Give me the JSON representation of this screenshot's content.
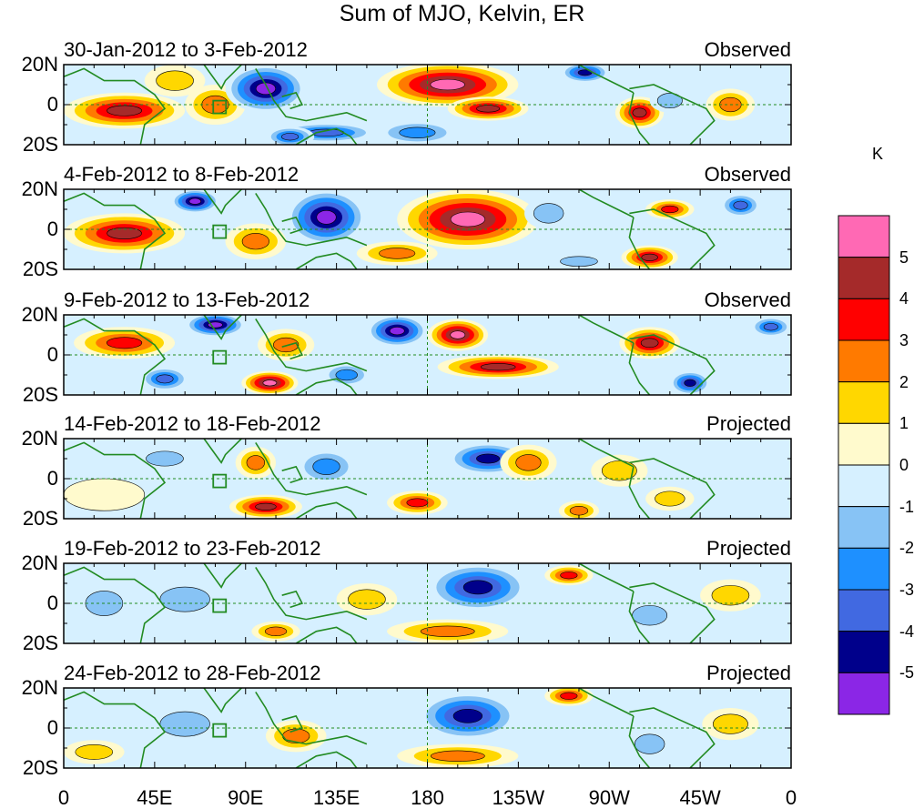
{
  "chart_data": {
    "type": "heatmap",
    "title": "Sum of MJO, Kelvin, ER",
    "colorbar": {
      "unit": "K",
      "tick_labels": [
        "5",
        "4",
        "3",
        "2",
        "1",
        "0",
        "-1",
        "-2",
        "-3",
        "-4",
        "-5"
      ],
      "levels": [
        -5,
        -4,
        -3,
        -2,
        -1,
        0,
        1,
        2,
        3,
        4,
        5
      ],
      "colors_low_to_high": [
        "#8b26e6",
        "#00008b",
        "#4169e1",
        "#1e90ff",
        "#87c3f5",
        "#d6f0ff",
        "#fffacd",
        "#ffd700",
        "#ff7a00",
        "#ff0000",
        "#a52a2a",
        "#ff69b4"
      ]
    },
    "x_axis": {
      "tick_labels": [
        "0",
        "45E",
        "90E",
        "135E",
        "180",
        "135W",
        "90W",
        "45W",
        "0"
      ],
      "range_deg_east": [
        0,
        360
      ]
    },
    "y_axis": {
      "tick_labels": [
        "20N",
        "0",
        "20S"
      ],
      "range_deg": [
        -20,
        20
      ]
    },
    "panels": [
      {
        "period": "30-Jan-2012 to 3-Feb-2012",
        "status": "Observed",
        "anomalies": [
          {
            "lon": 30,
            "lat": -3,
            "value": 4.5,
            "rlon": 30,
            "rlat": 9
          },
          {
            "lon": 75,
            "lat": 0,
            "value": 2.5,
            "rlon": 15,
            "rlat": 10
          },
          {
            "lon": 100,
            "lat": 8,
            "value": -5.5,
            "rlon": 20,
            "rlat": 12
          },
          {
            "lon": 130,
            "lat": -14,
            "value": -4,
            "rlon": 25,
            "rlat": 5
          },
          {
            "lon": 112,
            "lat": -16,
            "value": -4,
            "rlon": 12,
            "rlat": 5
          },
          {
            "lon": 190,
            "lat": 10,
            "value": 5.5,
            "rlon": 35,
            "rlat": 11
          },
          {
            "lon": 210,
            "lat": -2,
            "value": 4.5,
            "rlon": 20,
            "rlat": 6
          },
          {
            "lon": 285,
            "lat": -4,
            "value": 4.5,
            "rlon": 12,
            "rlat": 8
          },
          {
            "lon": 258,
            "lat": 16,
            "value": -4.5,
            "rlon": 12,
            "rlat": 5
          },
          {
            "lon": 300,
            "lat": 2,
            "value": -1.5,
            "rlon": 10,
            "rlat": 6
          },
          {
            "lon": 330,
            "lat": 0,
            "value": 3,
            "rlon": 12,
            "rlat": 8
          },
          {
            "lon": 175,
            "lat": -14,
            "value": -3,
            "rlon": 20,
            "rlat": 6
          },
          {
            "lon": 55,
            "lat": 12,
            "value": 1.5,
            "rlon": 15,
            "rlat": 8
          }
        ]
      },
      {
        "period": "4-Feb-2012 to 8-Feb-2012",
        "status": "Observed",
        "anomalies": [
          {
            "lon": 30,
            "lat": -2,
            "value": 4.5,
            "rlon": 30,
            "rlat": 10
          },
          {
            "lon": 65,
            "lat": 14,
            "value": -5.5,
            "rlon": 12,
            "rlat": 6
          },
          {
            "lon": 130,
            "lat": 6,
            "value": -5.5,
            "rlon": 20,
            "rlat": 14
          },
          {
            "lon": 95,
            "lat": -6,
            "value": 2.5,
            "rlon": 15,
            "rlat": 9
          },
          {
            "lon": 200,
            "lat": 5,
            "value": 5.5,
            "rlon": 35,
            "rlat": 15
          },
          {
            "lon": 300,
            "lat": 10,
            "value": 4,
            "rlon": 12,
            "rlat": 5
          },
          {
            "lon": 290,
            "lat": -14,
            "value": 5,
            "rlon": 14,
            "rlat": 6
          },
          {
            "lon": 240,
            "lat": 8,
            "value": -1.5,
            "rlon": 12,
            "rlat": 8
          },
          {
            "lon": 335,
            "lat": 12,
            "value": -4,
            "rlon": 10,
            "rlat": 6
          },
          {
            "lon": 165,
            "lat": -12,
            "value": 2.5,
            "rlon": 20,
            "rlat": 6
          },
          {
            "lon": 255,
            "lat": -16,
            "value": -1.5,
            "rlon": 15,
            "rlat": 4
          }
        ]
      },
      {
        "period": "9-Feb-2012 to 13-Feb-2012",
        "status": "Observed",
        "anomalies": [
          {
            "lon": 30,
            "lat": 6,
            "value": 3.5,
            "rlon": 25,
            "rlat": 8
          },
          {
            "lon": 75,
            "lat": 15,
            "value": -5.5,
            "rlon": 15,
            "rlat": 6
          },
          {
            "lon": 50,
            "lat": -12,
            "value": -4,
            "rlon": 12,
            "rlat": 6
          },
          {
            "lon": 102,
            "lat": -14,
            "value": 5.5,
            "rlon": 14,
            "rlat": 6
          },
          {
            "lon": 110,
            "lat": 5,
            "value": 3,
            "rlon": 14,
            "rlat": 8
          },
          {
            "lon": 165,
            "lat": 12,
            "value": -5.5,
            "rlon": 15,
            "rlat": 8
          },
          {
            "lon": 195,
            "lat": 10,
            "value": 5.5,
            "rlon": 15,
            "rlat": 8
          },
          {
            "lon": 215,
            "lat": -6,
            "value": 4.5,
            "rlon": 30,
            "rlat": 6
          },
          {
            "lon": 290,
            "lat": 6,
            "value": 5,
            "rlon": 15,
            "rlat": 8
          },
          {
            "lon": 310,
            "lat": -14,
            "value": -5,
            "rlon": 10,
            "rlat": 6
          },
          {
            "lon": 140,
            "lat": -10,
            "value": -2.5,
            "rlon": 12,
            "rlat": 6
          },
          {
            "lon": 350,
            "lat": 14,
            "value": -3.5,
            "rlon": 10,
            "rlat": 5
          }
        ]
      },
      {
        "period": "14-Feb-2012 to 18-Feb-2012",
        "status": "Projected",
        "anomalies": [
          {
            "lon": 210,
            "lat": 10,
            "value": -4.5,
            "rlon": 20,
            "rlat": 8
          },
          {
            "lon": 230,
            "lat": 8,
            "value": 2.5,
            "rlon": 14,
            "rlat": 9
          },
          {
            "lon": 100,
            "lat": -14,
            "value": 5,
            "rlon": 18,
            "rlat": 6
          },
          {
            "lon": 95,
            "lat": 8,
            "value": 3,
            "rlon": 10,
            "rlat": 8
          },
          {
            "lon": 130,
            "lat": 6,
            "value": -3,
            "rlon": 15,
            "rlat": 9
          },
          {
            "lon": 175,
            "lat": -12,
            "value": 3.5,
            "rlon": 15,
            "rlat": 6
          },
          {
            "lon": 275,
            "lat": 4,
            "value": 2,
            "rlon": 14,
            "rlat": 8
          },
          {
            "lon": 300,
            "lat": -10,
            "value": 2,
            "rlon": 12,
            "rlat": 6
          },
          {
            "lon": 50,
            "lat": 10,
            "value": -2,
            "rlon": 15,
            "rlat": 6
          },
          {
            "lon": 255,
            "lat": -16,
            "value": 2.5,
            "rlon": 10,
            "rlat": 5
          },
          {
            "lon": 20,
            "lat": -8,
            "value": 1,
            "rlon": 20,
            "rlat": 8
          }
        ]
      },
      {
        "period": "19-Feb-2012 to 23-Feb-2012",
        "status": "Projected",
        "anomalies": [
          {
            "lon": 205,
            "lat": 8,
            "value": -5,
            "rlon": 25,
            "rlat": 12
          },
          {
            "lon": 250,
            "lat": 14,
            "value": 3.5,
            "rlon": 12,
            "rlat": 5
          },
          {
            "lon": 190,
            "lat": -14,
            "value": 2.5,
            "rlon": 30,
            "rlat": 6
          },
          {
            "lon": 105,
            "lat": -14,
            "value": 3,
            "rlon": 12,
            "rlat": 5
          },
          {
            "lon": 150,
            "lat": 2,
            "value": 2,
            "rlon": 15,
            "rlat": 8
          },
          {
            "lon": 60,
            "lat": 2,
            "value": -2,
            "rlon": 20,
            "rlat": 10
          },
          {
            "lon": 330,
            "lat": 4,
            "value": 1.5,
            "rlon": 15,
            "rlat": 8
          },
          {
            "lon": 290,
            "lat": -6,
            "value": -2,
            "rlon": 14,
            "rlat": 8
          },
          {
            "lon": 20,
            "lat": 0,
            "value": -1.5,
            "rlon": 15,
            "rlat": 10
          }
        ]
      },
      {
        "period": "24-Feb-2012 to 28-Feb-2012",
        "status": "Projected",
        "anomalies": [
          {
            "lon": 200,
            "lat": 6,
            "value": -4.5,
            "rlon": 25,
            "rlat": 12
          },
          {
            "lon": 250,
            "lat": 16,
            "value": 3.5,
            "rlon": 12,
            "rlat": 5
          },
          {
            "lon": 195,
            "lat": -14,
            "value": 2.5,
            "rlon": 30,
            "rlat": 6
          },
          {
            "lon": 115,
            "lat": -4,
            "value": 2.5,
            "rlon": 15,
            "rlat": 8
          },
          {
            "lon": 60,
            "lat": 2,
            "value": -2,
            "rlon": 20,
            "rlat": 10
          },
          {
            "lon": 330,
            "lat": 2,
            "value": 2,
            "rlon": 14,
            "rlat": 8
          },
          {
            "lon": 290,
            "lat": -8,
            "value": -2,
            "rlon": 12,
            "rlat": 8
          },
          {
            "lon": 15,
            "lat": -12,
            "value": 2,
            "rlon": 15,
            "rlat": 6
          }
        ]
      }
    ]
  }
}
